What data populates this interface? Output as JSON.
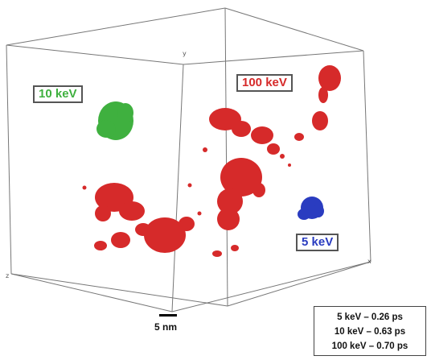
{
  "labels": {
    "kev10": "10 keV",
    "kev100": "100 keV",
    "kev5": "5 keV"
  },
  "axes": {
    "x": "x",
    "y": "y",
    "z": "z"
  },
  "scale": {
    "label": "5 nm"
  },
  "legend": {
    "rows": [
      "5 keV – 0.26 ps",
      "10 keV – 0.63 ps",
      "100 keV – 0.70 ps"
    ]
  },
  "colors": {
    "kev10": "#3fb03f",
    "kev100": "#d62a2a",
    "kev5": "#2a3cc0",
    "box_edges": "#666666"
  }
}
